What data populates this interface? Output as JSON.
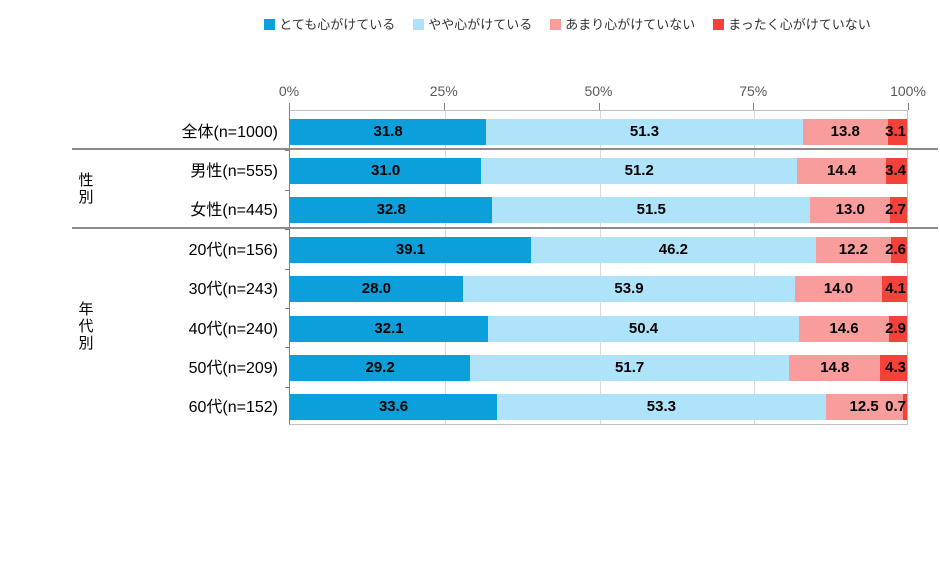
{
  "chart_data": {
    "type": "bar",
    "orientation": "horizontal",
    "stacked": true,
    "unit": "%",
    "legend_position": "top",
    "grid": true,
    "value_label_format": "0.0",
    "x_axis": {
      "tick_labels": [
        "0%",
        "25%",
        "50%",
        "75%",
        "100%"
      ],
      "tick_values": [
        0,
        25,
        50,
        75,
        100
      ],
      "range": [
        0,
        100
      ]
    },
    "series": [
      {
        "name": "とても心がけている",
        "color": "#0BA0DC"
      },
      {
        "name": "やや心がけている",
        "color": "#AEE3FA"
      },
      {
        "name": "あまり心がけていない",
        "color": "#F89C9C"
      },
      {
        "name": "まったく心がけていない",
        "color": "#F4423A"
      }
    ],
    "groups": [
      {
        "label": "",
        "rows": [
          {
            "label": "全体(n=1000)",
            "values": [
              31.8,
              51.3,
              13.8,
              3.1
            ]
          }
        ]
      },
      {
        "label": "性別",
        "rows": [
          {
            "label": "男性(n=555)",
            "values": [
              31.0,
              51.2,
              14.4,
              3.4
            ]
          },
          {
            "label": "女性(n=445)",
            "values": [
              32.8,
              51.5,
              13.0,
              2.7
            ]
          }
        ]
      },
      {
        "label": "年代別",
        "rows": [
          {
            "label": "20代(n=156)",
            "values": [
              39.1,
              46.2,
              12.2,
              2.6
            ]
          },
          {
            "label": "30代(n=243)",
            "values": [
              28.0,
              53.9,
              14.0,
              4.1
            ]
          },
          {
            "label": "40代(n=240)",
            "values": [
              32.1,
              50.4,
              14.6,
              2.9
            ]
          },
          {
            "label": "50代(n=209)",
            "values": [
              29.2,
              51.7,
              14.8,
              4.3
            ]
          },
          {
            "label": "60代(n=152)",
            "values": [
              33.6,
              53.3,
              12.5,
              0.7
            ]
          }
        ]
      }
    ]
  },
  "colors": {
    "grid": "#D9D9D9",
    "plot_border": "#BFBFBF",
    "axis_line": "#808080",
    "separator": "#8C8C8C",
    "axis_label": "#595959",
    "value_label": "#000000",
    "category_label": "#000000",
    "legend_label": "#333333"
  }
}
